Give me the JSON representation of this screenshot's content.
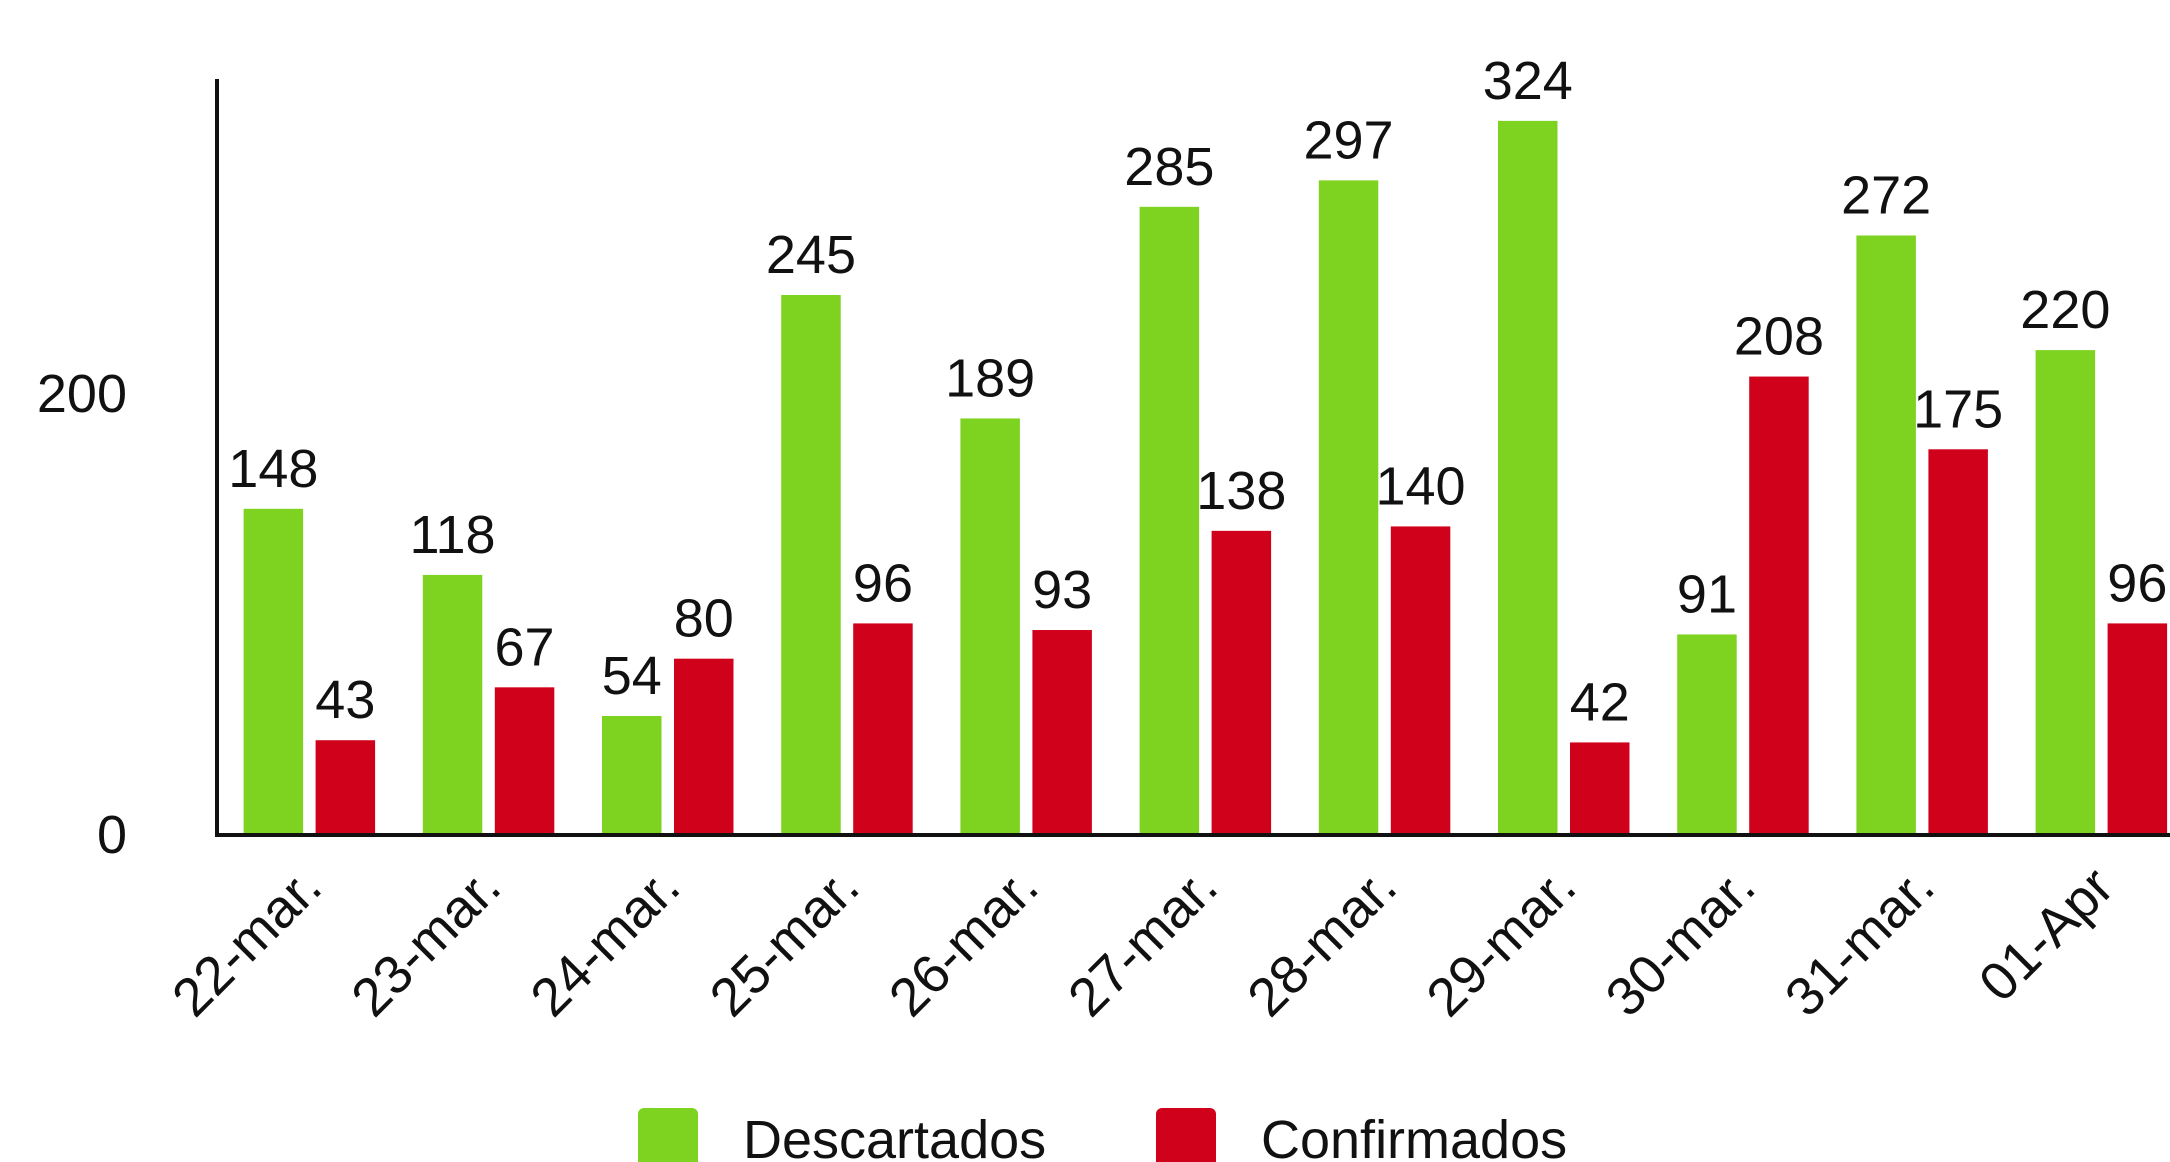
{
  "chart_data": {
    "type": "bar",
    "categories": [
      "22-mar.",
      "23-mar.",
      "24-mar.",
      "25-mar.",
      "26-mar.",
      "27-mar.",
      "28-mar.",
      "29-mar.",
      "30-mar.",
      "31-mar.",
      "01-Apr"
    ],
    "series": [
      {
        "name": "Descartados",
        "color": "#7ed321",
        "values": [
          148,
          118,
          54,
          245,
          189,
          285,
          297,
          324,
          91,
          272,
          220
        ]
      },
      {
        "name": "Confirmados",
        "color": "#d0021b",
        "values": [
          43,
          67,
          80,
          96,
          93,
          138,
          140,
          42,
          208,
          175,
          96
        ]
      }
    ],
    "ylim": [
      0,
      343
    ],
    "yticks": [
      0,
      200
    ],
    "grid": false,
    "legend": "bottom"
  }
}
